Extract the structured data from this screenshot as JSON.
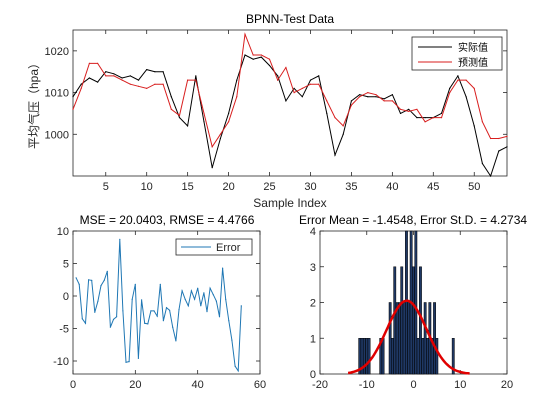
{
  "chart_data": [
    {
      "type": "line",
      "title": "BPNN-Test Data",
      "xlabel": "Sample Index",
      "ylabel": "平均气压（hpa）",
      "xlim": [
        1,
        54
      ],
      "ylim": [
        990,
        1025
      ],
      "xticks": [
        5,
        10,
        15,
        20,
        25,
        30,
        35,
        40,
        45,
        50
      ],
      "yticks": [
        1000,
        1010,
        1020
      ],
      "grid": false,
      "legend_position": "top-right",
      "colors": {
        "actual": "#000000",
        "predicted": "#d81e1e"
      },
      "x": [
        1,
        2,
        3,
        4,
        5,
        6,
        7,
        8,
        9,
        10,
        11,
        12,
        13,
        14,
        15,
        16,
        17,
        18,
        19,
        20,
        21,
        22,
        23,
        24,
        25,
        26,
        27,
        28,
        29,
        30,
        31,
        32,
        33,
        34,
        35,
        36,
        37,
        38,
        39,
        40,
        41,
        42,
        43,
        44,
        45,
        46,
        47,
        48,
        49,
        50,
        51,
        52,
        53,
        54
      ],
      "series": [
        {
          "name": "实际值",
          "values": [
            1009,
            1012,
            1013.5,
            1012.5,
            1015,
            1014.5,
            1013.5,
            1014,
            1013,
            1015.5,
            1015,
            1015,
            1009,
            1004,
            1002,
            1014,
            1003,
            992,
            999,
            1005,
            1013,
            1019,
            1018,
            1018.5,
            1016.5,
            1014,
            1008,
            1011,
            1009,
            1013,
            1014,
            1005,
            995,
            1000,
            1008,
            1009.5,
            1009,
            1009,
            1008.5,
            1009.5,
            1005,
            1006,
            1004,
            1004,
            1004,
            1005,
            1011,
            1014,
            1009,
            1002,
            993,
            990,
            996,
            997
          ]
        },
        {
          "name": "预测值",
          "values": [
            1006,
            1011,
            1017,
            1017,
            1014,
            1014,
            1013,
            1012,
            1011.5,
            1011,
            1012,
            1012,
            1006,
            1004.5,
            1013,
            1013,
            1005,
            997,
            1000,
            1003,
            1009,
            1024,
            1019,
            1019,
            1018,
            1013,
            1016,
            1010,
            1011,
            1012,
            1012,
            1008,
            1004,
            1002,
            1007,
            1009,
            1010,
            1009.5,
            1008,
            1008,
            1006,
            1005.5,
            1006,
            1003,
            1004,
            1004,
            1010,
            1013,
            1013,
            1011,
            1003,
            999,
            999,
            999.5
          ]
        }
      ]
    },
    {
      "type": "line",
      "title": "MSE = 20.0403, RMSE = 4.4766",
      "xlim": [
        0,
        60
      ],
      "ylim": [
        -12,
        10
      ],
      "xticks": [
        0,
        20,
        40,
        60
      ],
      "yticks": [
        -10,
        -5,
        0,
        5,
        10
      ],
      "grid": false,
      "legend_position": "top-right",
      "colors": {
        "error": "#1f77b4"
      },
      "x": [
        1,
        2,
        3,
        4,
        5,
        6,
        7,
        8,
        9,
        10,
        11,
        12,
        13,
        14,
        15,
        16,
        17,
        18,
        19,
        20,
        21,
        22,
        23,
        24,
        25,
        26,
        27,
        28,
        29,
        30,
        31,
        32,
        33,
        34,
        35,
        36,
        37,
        38,
        39,
        40,
        41,
        42,
        43,
        44,
        45,
        46,
        47,
        48,
        49,
        50,
        51,
        52,
        53,
        54
      ],
      "series": [
        {
          "name": "Error",
          "values": [
            2.8,
            1.8,
            -3.5,
            -4.2,
            2.5,
            2.4,
            -2.5,
            -0.8,
            1.6,
            2.4,
            3.8,
            -4.8,
            -3.6,
            -3.2,
            8.7,
            -2.3,
            -10.2,
            -10.1,
            -0.5,
            1.8,
            -9.6,
            -0.6,
            -4.2,
            -4.3,
            -2.3,
            -2.3,
            -3.1,
            1.8,
            -3.8,
            -1.8,
            -2.2,
            -4.8,
            -6.9,
            -2.1,
            0.8,
            -0.5,
            -1.5,
            0.8,
            -0.5,
            1.2,
            -1.5,
            0.5,
            -2.4,
            1.2,
            0.2,
            -0.8,
            -3.2,
            4.3,
            -0.5,
            -3.8,
            -6.8,
            -10.8,
            -11.5,
            -1.5
          ]
        }
      ]
    },
    {
      "type": "bar",
      "title": "Error Mean = -1.4548, Error St.D. = 4.2734",
      "xlim": [
        -20,
        20
      ],
      "ylim": [
        0,
        4
      ],
      "xticks": [
        -20,
        -10,
        0,
        10,
        20
      ],
      "yticks": [
        0,
        1,
        2,
        3,
        4
      ],
      "grid": false,
      "colors": {
        "bar_fill": "#1f3864",
        "bar_edge": "#000000",
        "fit_curve": "#e00000"
      },
      "bin_centers": [
        -11.5,
        -11,
        -10.5,
        -10,
        -9.5,
        -7,
        -6.5,
        -5,
        -4.5,
        -4,
        -3.5,
        -3,
        -2.5,
        -2,
        -1.5,
        -1,
        -0.5,
        0,
        0.5,
        1,
        1.5,
        2,
        2.5,
        3,
        3.5,
        4,
        4.5,
        5,
        8.5
      ],
      "counts": [
        1,
        1,
        1,
        1,
        1,
        1,
        1,
        2,
        1,
        3,
        2,
        2,
        3,
        2,
        4,
        2,
        4,
        3,
        4,
        1,
        3,
        1,
        2,
        1,
        2,
        1,
        2,
        1,
        1
      ],
      "fit_curve": {
        "mean": -1.4548,
        "std": 4.2734,
        "x_range": [
          -14,
          12
        ],
        "scale_to_peak": 2.05
      }
    }
  ]
}
